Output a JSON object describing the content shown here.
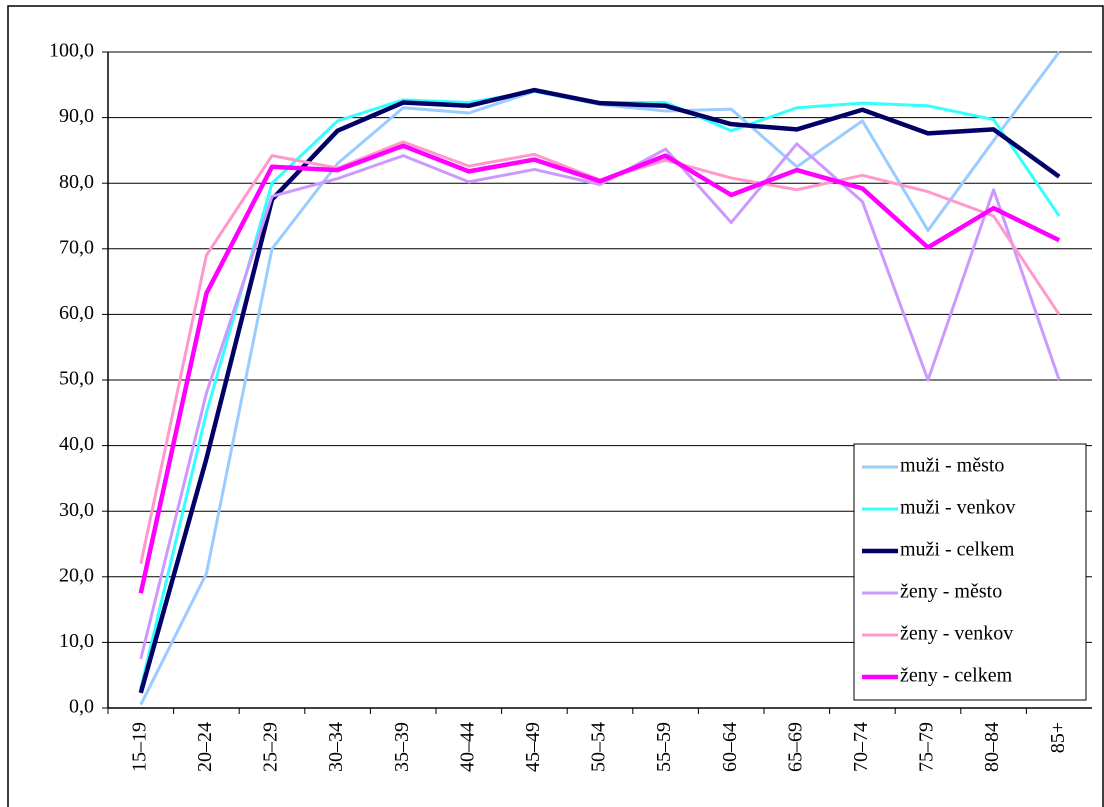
{
  "chart_data": {
    "type": "line",
    "categories": [
      "15–19",
      "20–24",
      "25–29",
      "30–34",
      "35–39",
      "40–44",
      "45–49",
      "50–54",
      "55–59",
      "60–64",
      "65–69",
      "70–74",
      "75–79",
      "80–84",
      "85+"
    ],
    "series": [
      {
        "name": "muži - město",
        "color": "#99ccff",
        "width": 3,
        "values": [
          0.5,
          20.5,
          70,
          83,
          91.5,
          90.7,
          94,
          92,
          91,
          91.3,
          82.5,
          89.5,
          72.8,
          86.5,
          100
        ]
      },
      {
        "name": "muži - venkov",
        "color": "#33ffff",
        "width": 3,
        "values": [
          3,
          45,
          80,
          89.5,
          92.7,
          92.3,
          94,
          92.3,
          92.3,
          88,
          91.5,
          92.2,
          91.8,
          89.7,
          75
        ]
      },
      {
        "name": "muži - celkem",
        "color": "#000066",
        "width": 4.5,
        "values": [
          2.3,
          38,
          77.5,
          88,
          92.3,
          91.8,
          94.2,
          92.2,
          91.8,
          89,
          88.2,
          91.2,
          87.6,
          88.2,
          81
        ]
      },
      {
        "name": "ženy - město",
        "color": "#cc99ff",
        "width": 3,
        "values": [
          7.5,
          48,
          78,
          80.7,
          84.2,
          80.2,
          82.1,
          79.8,
          85.2,
          74,
          86,
          77.2,
          50,
          79,
          50
        ]
      },
      {
        "name": "ženy - venkov",
        "color": "#ff99cc",
        "width": 3,
        "values": [
          22,
          69,
          84.2,
          82.3,
          86.3,
          82.6,
          84.4,
          80.5,
          83.5,
          80.8,
          79,
          81.2,
          78.7,
          75,
          60
        ]
      },
      {
        "name": "ženy - celkem",
        "color": "#ff00ff",
        "width": 4.5,
        "values": [
          17.5,
          63.2,
          82.5,
          82,
          85.7,
          81.8,
          83.6,
          80.3,
          84.2,
          78.2,
          82,
          79.2,
          70.2,
          76.2,
          71.3
        ]
      }
    ],
    "ylim": [
      0,
      100
    ],
    "yticks": [
      {
        "value": 0,
        "label": "0,0"
      },
      {
        "value": 10,
        "label": "10,0"
      },
      {
        "value": 20,
        "label": "20,0"
      },
      {
        "value": 30,
        "label": "30,0"
      },
      {
        "value": 40,
        "label": "40,0"
      },
      {
        "value": 50,
        "label": "50,0"
      },
      {
        "value": 60,
        "label": "60,0"
      },
      {
        "value": 70,
        "label": "70,0"
      },
      {
        "value": 80,
        "label": "80,0"
      },
      {
        "value": 90,
        "label": "90,0"
      },
      {
        "value": 100,
        "label": "100,0"
      }
    ],
    "grid": true,
    "legend": "lower right"
  }
}
